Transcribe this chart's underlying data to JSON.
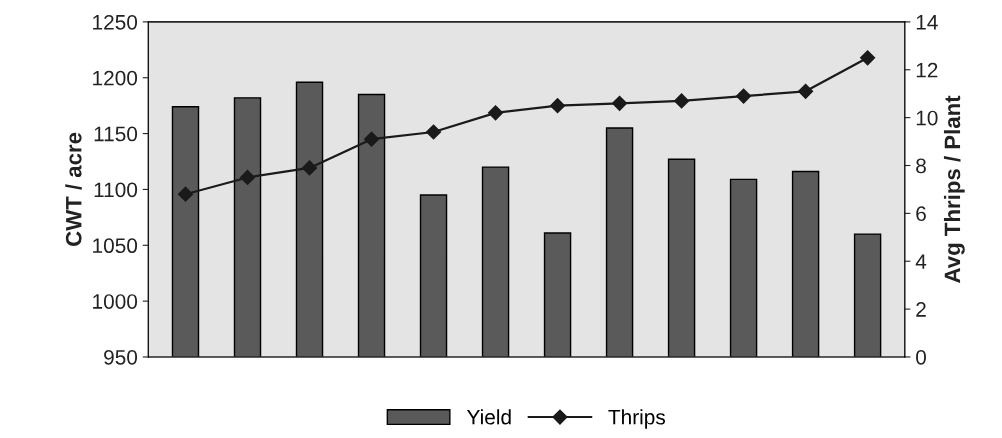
{
  "chart_data": {
    "type": "bar",
    "ylabel": "CWT / acre",
    "y2label": "Avg Thrips / Plant",
    "categories": [
      null,
      null,
      null,
      null,
      null,
      null,
      null,
      null,
      null,
      null,
      null,
      null
    ],
    "series": [
      {
        "name": "Yield",
        "color": "#5a5a5a",
        "values": [
          1174,
          1182,
          1196,
          1185,
          1095,
          1120,
          1061,
          1155,
          1127,
          1109,
          1116,
          1060
        ]
      },
      {
        "name": "Thrips",
        "type": "line",
        "axis": "y2",
        "color": "#1a1a1a",
        "values": [
          6.8,
          7.5,
          7.9,
          9.1,
          9.4,
          10.2,
          10.5,
          10.6,
          10.7,
          10.9,
          11.1,
          12.5
        ]
      }
    ],
    "ylim": [
      950,
      1250
    ],
    "yticks": [
      950,
      1000,
      1050,
      1100,
      1150,
      1200,
      1250
    ],
    "y2lim": [
      0,
      14
    ],
    "y2ticks": [
      0,
      2,
      4,
      6,
      8,
      10,
      12,
      14
    ],
    "marker": "diamond",
    "line_style": "solid",
    "legend": "bottom",
    "grid": false
  }
}
